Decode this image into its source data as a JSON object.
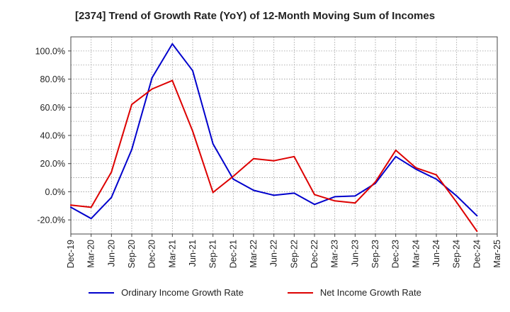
{
  "chart_data": {
    "type": "line",
    "title": "[2374]  Trend of Growth Rate (YoY) of 12-Month Moving Sum of Incomes",
    "xlabel": "",
    "ylabel": "",
    "categories": [
      "Dec-19",
      "Mar-20",
      "Jun-20",
      "Sep-20",
      "Dec-20",
      "Mar-21",
      "Jun-21",
      "Sep-21",
      "Dec-21",
      "Mar-22",
      "Jun-22",
      "Sep-22",
      "Dec-22",
      "Mar-23",
      "Jun-23",
      "Sep-23",
      "Dec-23",
      "Mar-24",
      "Jun-24",
      "Sep-24",
      "Dec-24",
      "Mar-25"
    ],
    "y_ticks": [
      "100.0%",
      "80.0%",
      "60.0%",
      "40.0%",
      "20.0%",
      "0.0%",
      "-20.0%"
    ],
    "ylim": [
      -30,
      110
    ],
    "grid": true,
    "legend_position": "bottom",
    "series": [
      {
        "name": "Ordinary Income Growth Rate",
        "color": "#0000cc",
        "values": [
          -11,
          -19,
          -4,
          30,
          81,
          105,
          86,
          34,
          9,
          1,
          -2.5,
          -1,
          -9,
          -3.5,
          -3,
          6,
          25,
          16,
          9,
          -3,
          -17,
          null
        ]
      },
      {
        "name": "Net Income Growth Rate",
        "color": "#dd0000",
        "values": [
          -9.5,
          -11,
          14,
          62,
          73,
          79,
          43,
          -0.5,
          11,
          23.5,
          22,
          25,
          -2,
          -6.5,
          -8,
          7,
          29.5,
          17,
          12,
          -7.5,
          -28,
          null
        ]
      }
    ]
  }
}
